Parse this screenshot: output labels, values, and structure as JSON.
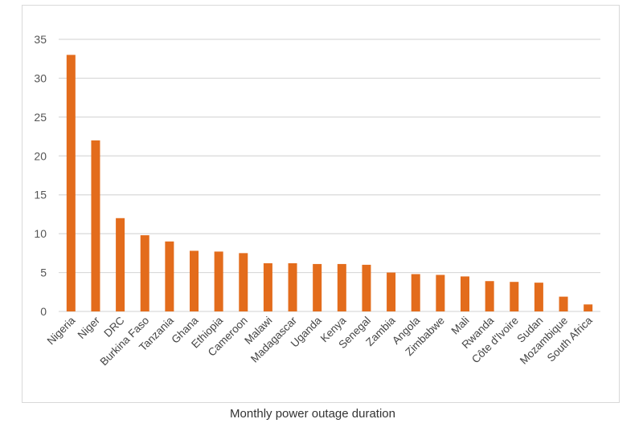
{
  "caption": "Monthly power outage duration",
  "colors": {
    "bar": "#E36C1C",
    "grid": "#d9d9d9",
    "text": "#555555"
  },
  "chart_data": {
    "type": "bar",
    "title": "",
    "xlabel": "Monthly power outage duration",
    "ylabel": "",
    "ylim": [
      0,
      35
    ],
    "yticks": [
      0,
      5,
      10,
      15,
      20,
      25,
      30,
      35
    ],
    "grid": true,
    "categories": [
      "Nigeria",
      "Niger",
      "DRC",
      "Burkina Faso",
      "Tanzania",
      "Ghana",
      "Ethiopia",
      "Cameroon",
      "Malawi",
      "Madagascar",
      "Uganda",
      "Kenya",
      "Senegal",
      "Zambia",
      "Angola",
      "Zimbabwe",
      "Mali",
      "Rwanda",
      "Côte d'Ivoire",
      "Sudan",
      "Mozambique",
      "South Africa"
    ],
    "values": [
      33,
      22,
      12,
      9.8,
      9,
      7.8,
      7.7,
      7.5,
      6.2,
      6.2,
      6.1,
      6.1,
      6,
      5,
      4.8,
      4.7,
      4.5,
      3.9,
      3.8,
      3.7,
      1.9,
      0.9
    ]
  }
}
